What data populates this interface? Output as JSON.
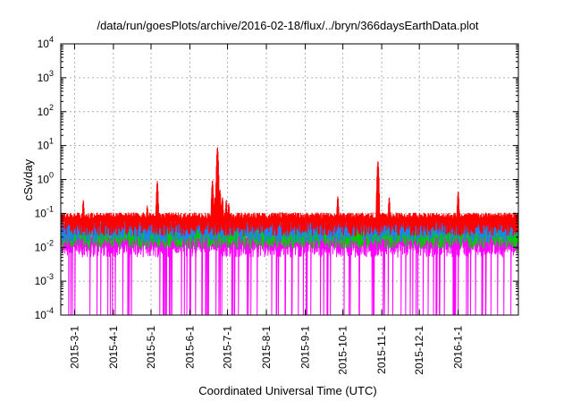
{
  "chart_data": {
    "type": "line",
    "title": "/data/run/goesPlots/archive/2016-02-18/flux/../bryn/366daysEarthData.plot",
    "xlabel": "Coordinated Universal Time (UTC)",
    "ylabel": "cSv/day",
    "yscale": "log",
    "ylim": [
      0.0001,
      10000
    ],
    "xlim": [
      "2015-02-18",
      "2016-02-18"
    ],
    "grid": true,
    "legend": "none",
    "y_ticks": [
      {
        "base": "10",
        "exp": "-4",
        "value": 0.0001
      },
      {
        "base": "10",
        "exp": "-3",
        "value": 0.001
      },
      {
        "base": "10",
        "exp": "-2",
        "value": 0.01
      },
      {
        "base": "10",
        "exp": "-1",
        "value": 0.1
      },
      {
        "base": "10",
        "exp": "0",
        "value": 1
      },
      {
        "base": "10",
        "exp": "1",
        "value": 10
      },
      {
        "base": "10",
        "exp": "2",
        "value": 100
      },
      {
        "base": "10",
        "exp": "3",
        "value": 1000
      },
      {
        "base": "10",
        "exp": "4",
        "value": 10000
      }
    ],
    "x_ticks": [
      "2015-3-1",
      "2015-4-1",
      "2015-5-1",
      "2015-6-1",
      "2015-7-1",
      "2015-8-1",
      "2015-9-1",
      "2015-10-1",
      "2015-11-1",
      "2015-12-1",
      "2016-1-1"
    ],
    "series": [
      {
        "color": "#ff0000",
        "baseline": 0.085,
        "peaks": [
          {
            "x": "2015-03-08",
            "y": 0.25
          },
          {
            "x": "2015-04-28",
            "y": 0.17
          },
          {
            "x": "2015-05-06",
            "y": 0.9
          },
          {
            "x": "2015-06-19",
            "y": 0.95
          },
          {
            "x": "2015-06-21",
            "y": 0.3
          },
          {
            "x": "2015-06-23",
            "y": 9.0
          },
          {
            "x": "2015-06-25",
            "y": 0.5
          },
          {
            "x": "2015-06-27",
            "y": 0.3
          },
          {
            "x": "2015-06-30",
            "y": 0.25
          },
          {
            "x": "2015-07-02",
            "y": 0.2
          },
          {
            "x": "2015-09-27",
            "y": 0.32
          },
          {
            "x": "2015-10-29",
            "y": 3.5
          },
          {
            "x": "2015-11-07",
            "y": 0.3
          },
          {
            "x": "2016-01-01",
            "y": 0.45
          }
        ]
      },
      {
        "color": "#1e7fff",
        "baseline": 0.055,
        "peaks": [
          {
            "x": "2015-05-06",
            "y": 0.45
          },
          {
            "x": "2015-06-19",
            "y": 0.5
          },
          {
            "x": "2015-06-23",
            "y": 2.5
          },
          {
            "x": "2015-06-25",
            "y": 0.3
          },
          {
            "x": "2015-10-29",
            "y": 1.5
          }
        ]
      },
      {
        "color": "#00cc00",
        "baseline": 0.035
      },
      {
        "color": "#ff00ff",
        "baseline": 0.02,
        "min": 0.0001
      }
    ]
  }
}
